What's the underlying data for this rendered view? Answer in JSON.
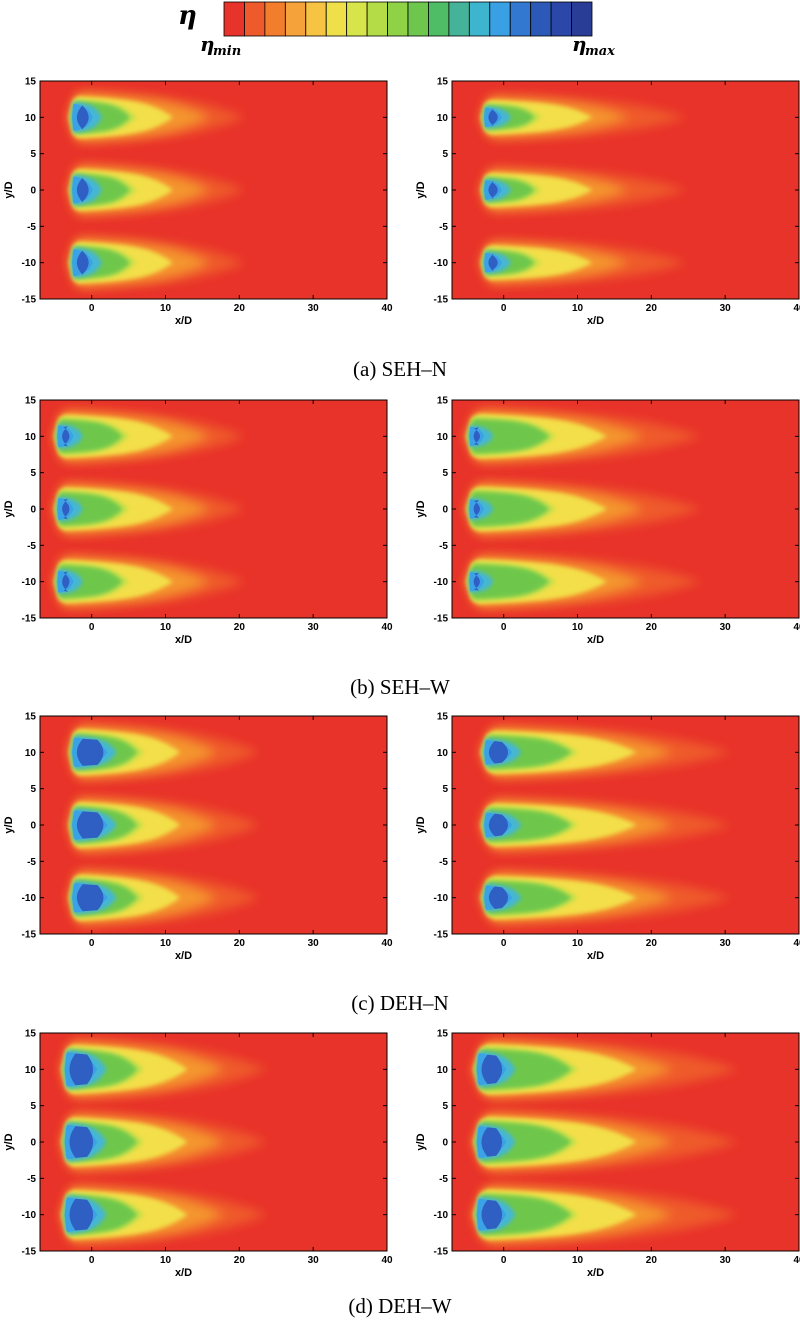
{
  "colorbar": {
    "symbol": "η",
    "min_label": "min",
    "max_label": "max",
    "colors": [
      "#e8332a",
      "#ee5a2c",
      "#f17d2d",
      "#f5a23a",
      "#f6c343",
      "#efe04a",
      "#d8e54a",
      "#b4dc46",
      "#8fd246",
      "#6ec74c",
      "#4fbd66",
      "#45b39a",
      "#3db5cf",
      "#3aa0e4",
      "#3277d0",
      "#2c58b8",
      "#2b47a8",
      "#293d97"
    ]
  },
  "chart_data": {
    "type": "heatmap",
    "field": "η",
    "xlabel": "x/D",
    "ylabel": "y/D",
    "xlim": [
      -7,
      40
    ],
    "ylim": [
      -15,
      15
    ],
    "xticks": [
      0,
      10,
      20,
      30,
      40
    ],
    "yticks": [
      15,
      10,
      5,
      0,
      -5,
      -10,
      -15
    ],
    "jet_centers_y": [
      10,
      0,
      -10
    ],
    "panels": [
      {
        "caption": "(a)  SEH–N",
        "label": "SEH-N",
        "plots": [
          {
            "side": "left",
            "x_start": -3,
            "core_len": 1.6,
            "green_len": 9,
            "yellow_len": 14,
            "tail_len": 24,
            "core_hw": 2.2,
            "green_hw": 2.5,
            "yellow_hw": 2.9
          },
          {
            "side": "right",
            "x_start": -3,
            "core_len": 1.2,
            "green_len": 8,
            "yellow_len": 15,
            "tail_len": 28,
            "core_hw": 1.6,
            "green_hw": 2.0,
            "yellow_hw": 2.4
          }
        ]
      },
      {
        "caption": "(b)  SEH–W",
        "label": "SEH-W",
        "plots": [
          {
            "side": "left",
            "x_start": -5,
            "core_len": 1.0,
            "green_len": 10,
            "yellow_len": 16,
            "tail_len": 26,
            "core_hw": 1.8,
            "green_hw": 2.6,
            "yellow_hw": 3.0
          },
          {
            "side": "right",
            "x_start": -5,
            "core_len": 0.8,
            "green_len": 12,
            "yellow_len": 19,
            "tail_len": 32,
            "core_hw": 1.6,
            "green_hw": 2.7,
            "yellow_hw": 3.1
          }
        ]
      },
      {
        "caption": "(c)  DEH–N",
        "label": "DEH-N",
        "plots": [
          {
            "side": "left",
            "x_start": -3,
            "core_len": 3.6,
            "green_len": 10,
            "yellow_len": 15,
            "tail_len": 26,
            "core_hw": 2.4,
            "green_hw": 2.8,
            "yellow_hw": 3.2
          },
          {
            "side": "right",
            "x_start": -3,
            "core_len": 2.6,
            "green_len": 13,
            "yellow_len": 21,
            "tail_len": 34,
            "core_hw": 2.0,
            "green_hw": 2.6,
            "yellow_hw": 3.0
          }
        ]
      },
      {
        "caption": "(d)  DEH–W",
        "label": "DEH-W",
        "plots": [
          {
            "side": "left",
            "x_start": -4,
            "core_len": 3.2,
            "green_len": 11,
            "yellow_len": 17,
            "tail_len": 28,
            "core_hw": 2.8,
            "green_hw": 3.0,
            "yellow_hw": 3.4
          },
          {
            "side": "right",
            "x_start": -4,
            "core_len": 2.8,
            "green_len": 14,
            "yellow_len": 22,
            "tail_len": 36,
            "core_hw": 2.6,
            "green_hw": 3.1,
            "yellow_hw": 3.5
          }
        ]
      }
    ]
  },
  "colors": {
    "background": "#e8332a",
    "red_orange": "#ef5a2c",
    "orange": "#f4952f",
    "yellow": "#f3df48",
    "yellow_green": "#c6e04a",
    "green": "#6ec74c",
    "cyan": "#45b6d6",
    "light_blue": "#3aa2e5",
    "blue": "#2f5fc2"
  }
}
